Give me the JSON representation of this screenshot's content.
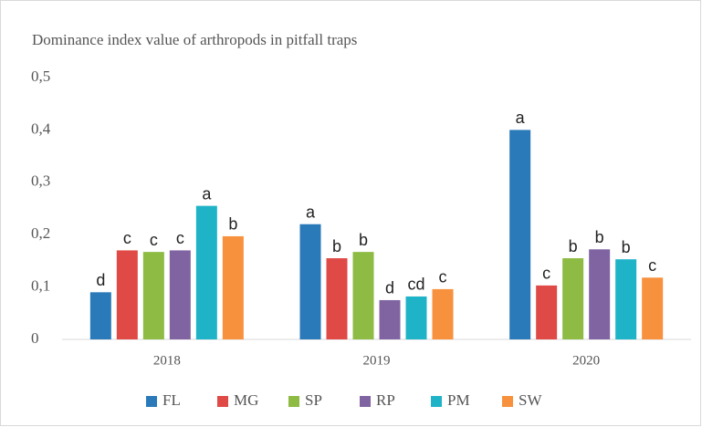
{
  "chart_data": {
    "type": "bar",
    "title": "Dominance index value of arthropods in pitfall traps",
    "categories": [
      "2018",
      "2019",
      "2020"
    ],
    "series": [
      {
        "name": "FL",
        "color": "#2a7ab9",
        "values": [
          0.09,
          0.22,
          0.4
        ],
        "annotations": [
          "d",
          "a",
          "a"
        ]
      },
      {
        "name": "MG",
        "color": "#df4a47",
        "values": [
          0.17,
          0.155,
          0.103
        ],
        "annotations": [
          "c",
          "b",
          "c"
        ]
      },
      {
        "name": "SP",
        "color": "#8dbb43",
        "values": [
          0.167,
          0.167,
          0.155
        ],
        "annotations": [
          "c",
          "b",
          "b"
        ]
      },
      {
        "name": "RP",
        "color": "#8064a2",
        "values": [
          0.17,
          0.075,
          0.172
        ],
        "annotations": [
          "c",
          "d",
          "b"
        ]
      },
      {
        "name": "PM",
        "color": "#1fb3c8",
        "values": [
          0.255,
          0.082,
          0.153
        ],
        "annotations": [
          "a",
          "cd",
          "b"
        ]
      },
      {
        "name": "SW",
        "color": "#f7913d",
        "values": [
          0.197,
          0.096,
          0.118
        ],
        "annotations": [
          "b",
          "c",
          "c"
        ]
      }
    ],
    "ylim": [
      0,
      0.5
    ],
    "yticks": [
      0,
      {
        "value": 0.1,
        "label": "0,1"
      },
      {
        "value": 0.2,
        "label": "0,2"
      },
      {
        "value": 0.3,
        "label": "0,3"
      },
      {
        "value": 0.4,
        "label": "0,4"
      },
      {
        "value": 0.5,
        "label": "0,5"
      }
    ],
    "grid": false,
    "legend": "bottom"
  }
}
